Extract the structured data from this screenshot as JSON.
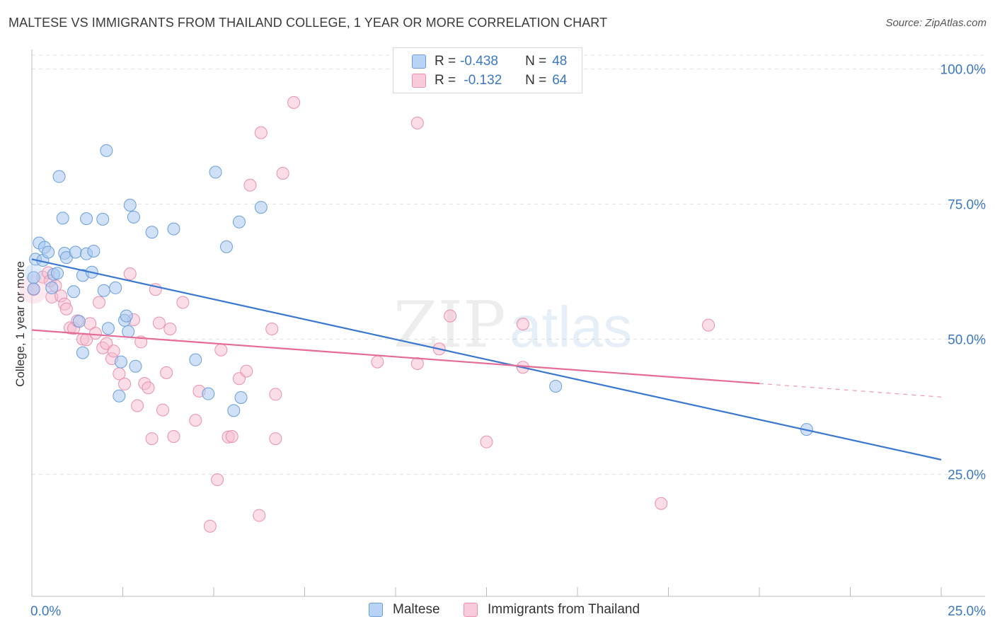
{
  "title": "MALTESE VS IMMIGRANTS FROM THAILAND COLLEGE, 1 YEAR OR MORE CORRELATION CHART",
  "source": "Source: ZipAtlas.com",
  "watermark": {
    "zip": "ZIP",
    "atlas": "atlas"
  },
  "legend_top": {
    "rows": [
      {
        "r_label": "R =",
        "r_value": "-0.438",
        "n_label": "N =",
        "n_value": "48"
      },
      {
        "r_label": "R =",
        "r_value": " -0.132",
        "n_label": "N =",
        "n_value": "64"
      }
    ]
  },
  "chart_data": {
    "type": "scatter",
    "title": "MALTESE VS IMMIGRANTS FROM THAILAND COLLEGE, 1 YEAR OR MORE CORRELATION CHART",
    "xlabel": "",
    "ylabel": "College, 1 year or more",
    "xlim": [
      0,
      25
    ],
    "ylim": [
      0,
      105
    ],
    "x_tick_labels": [
      "0.0%",
      "25.0%"
    ],
    "y_tick_labels": [
      "100.0%",
      "75.0%",
      "50.0%",
      "25.0%"
    ],
    "y_ticks": [
      100,
      75,
      50,
      25
    ],
    "grid": true,
    "legend_position": "bottom-center",
    "colors": {
      "maltese_fill": "#a9c8f0",
      "maltese_stroke": "#6a9ddc",
      "maltese_line": "#3a78d0",
      "thailand_fill": "#f6bcd0",
      "thailand_stroke": "#ea8fad",
      "thailand_line": "#e56c98",
      "tick_label": "#3b78c4",
      "grid": "#e2e2e2"
    },
    "series": [
      {
        "name": "Maltese",
        "r": -0.438,
        "n": 48,
        "trend": {
          "x_start": 0.0,
          "y_start": 64.8,
          "x_end": 25.0,
          "y_end": 27.7
        },
        "points": [
          [
            0.05,
            61.4
          ],
          [
            0.1,
            64.8
          ],
          [
            0.2,
            67.8
          ],
          [
            0.3,
            64.6
          ],
          [
            0.35,
            67.0
          ],
          [
            0.45,
            66.1
          ],
          [
            0.55,
            59.5
          ],
          [
            0.6,
            62.0
          ],
          [
            0.7,
            62.2
          ],
          [
            0.75,
            80.1
          ],
          [
            0.85,
            72.4
          ],
          [
            0.9,
            65.9
          ],
          [
            0.95,
            65.1
          ],
          [
            1.15,
            58.8
          ],
          [
            1.2,
            66.1
          ],
          [
            1.3,
            53.3
          ],
          [
            1.4,
            61.8
          ],
          [
            1.5,
            72.3
          ],
          [
            1.5,
            65.8
          ],
          [
            1.65,
            62.4
          ],
          [
            1.7,
            66.3
          ],
          [
            1.4,
            47.5
          ],
          [
            1.95,
            72.2
          ],
          [
            1.98,
            59.0
          ],
          [
            2.05,
            84.9
          ],
          [
            2.1,
            52.0
          ],
          [
            2.3,
            59.5
          ],
          [
            2.4,
            39.5
          ],
          [
            2.45,
            45.8
          ],
          [
            2.55,
            53.5
          ],
          [
            2.6,
            54.3
          ],
          [
            2.65,
            51.4
          ],
          [
            2.7,
            74.8
          ],
          [
            2.8,
            72.6
          ],
          [
            2.85,
            45.0
          ],
          [
            3.3,
            69.8
          ],
          [
            3.9,
            70.4
          ],
          [
            4.5,
            46.2
          ],
          [
            4.85,
            39.9
          ],
          [
            5.05,
            80.9
          ],
          [
            5.35,
            67.1
          ],
          [
            5.55,
            36.8
          ],
          [
            5.7,
            71.7
          ],
          [
            5.75,
            39.2
          ],
          [
            6.3,
            74.4
          ],
          [
            14.4,
            41.3
          ],
          [
            21.3,
            33.3
          ],
          [
            0.05,
            59.3
          ]
        ]
      },
      {
        "name": "Immigrants from Thailand",
        "r": -0.132,
        "n": 64,
        "trend": {
          "x_start": 0.0,
          "y_start": 51.7,
          "x_end": 20.0,
          "y_end": 41.8,
          "dash_x_end": 25.0,
          "dash_y_end": 39.3
        },
        "points": [
          [
            0.05,
            59.2
          ],
          [
            0.3,
            61.5
          ],
          [
            0.45,
            62.3
          ],
          [
            0.5,
            60.8
          ],
          [
            0.55,
            57.8
          ],
          [
            0.65,
            59.9
          ],
          [
            0.8,
            58.0
          ],
          [
            0.9,
            56.5
          ],
          [
            0.95,
            55.6
          ],
          [
            1.05,
            52.1
          ],
          [
            1.15,
            52.0
          ],
          [
            1.25,
            53.4
          ],
          [
            1.4,
            50.0
          ],
          [
            1.5,
            49.9
          ],
          [
            1.6,
            52.9
          ],
          [
            1.75,
            51.1
          ],
          [
            1.85,
            56.8
          ],
          [
            1.95,
            48.4
          ],
          [
            2.05,
            49.2
          ],
          [
            2.2,
            46.4
          ],
          [
            2.25,
            47.8
          ],
          [
            2.4,
            43.6
          ],
          [
            2.55,
            41.7
          ],
          [
            2.7,
            62.1
          ],
          [
            2.8,
            53.6
          ],
          [
            2.9,
            37.7
          ],
          [
            3.0,
            49.5
          ],
          [
            3.1,
            41.8
          ],
          [
            3.2,
            41.0
          ],
          [
            3.3,
            31.6
          ],
          [
            3.4,
            59.2
          ],
          [
            3.5,
            53.0
          ],
          [
            3.6,
            36.9
          ],
          [
            3.7,
            43.8
          ],
          [
            3.8,
            51.9
          ],
          [
            3.9,
            32.0
          ],
          [
            4.15,
            56.8
          ],
          [
            4.5,
            35.0
          ],
          [
            4.6,
            40.4
          ],
          [
            4.9,
            15.4
          ],
          [
            5.1,
            24.0
          ],
          [
            5.2,
            48.0
          ],
          [
            5.4,
            31.9
          ],
          [
            5.5,
            32.0
          ],
          [
            5.7,
            42.7
          ],
          [
            5.9,
            44.1
          ],
          [
            6.0,
            78.5
          ],
          [
            6.25,
            17.4
          ],
          [
            6.3,
            88.2
          ],
          [
            6.6,
            51.9
          ],
          [
            6.7,
            39.8
          ],
          [
            6.7,
            31.6
          ],
          [
            6.9,
            80.7
          ],
          [
            7.2,
            93.8
          ],
          [
            9.5,
            45.8
          ],
          [
            10.6,
            45.5
          ],
          [
            10.6,
            90.0
          ],
          [
            11.2,
            48.2
          ],
          [
            11.5,
            54.3
          ],
          [
            12.5,
            31.0
          ],
          [
            13.5,
            44.8
          ],
          [
            13.5,
            52.8
          ],
          [
            17.3,
            19.6
          ],
          [
            18.6,
            52.6
          ]
        ]
      }
    ]
  },
  "bottom_legend": {
    "items": [
      {
        "label": "Maltese"
      },
      {
        "label": "Immigrants from Thailand"
      }
    ]
  }
}
